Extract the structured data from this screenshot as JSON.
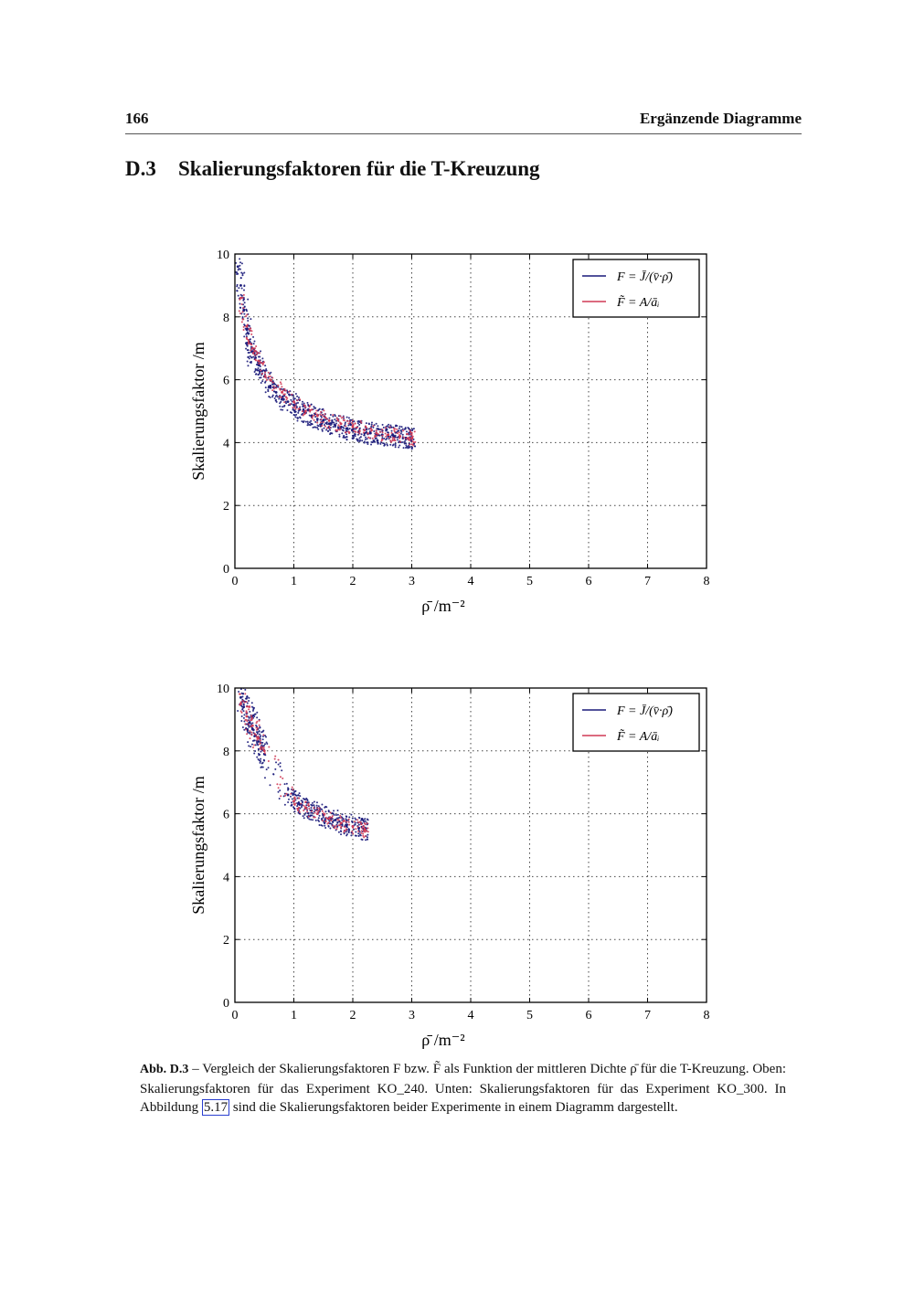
{
  "header": {
    "page_number": "166",
    "running_title": "Ergänzende Diagramme"
  },
  "section": {
    "number": "D.3",
    "title": "Skalierungsfaktoren für die T-Kreuzung"
  },
  "chart_data": [
    {
      "type": "scatter",
      "xlabel": "ρ̄  /m⁻²",
      "ylabel": "Skalierungsfaktor /m",
      "xlim": [
        0,
        8
      ],
      "ylim": [
        0,
        10
      ],
      "xticks": [
        0,
        1,
        2,
        3,
        4,
        5,
        6,
        7,
        8
      ],
      "yticks": [
        0,
        2,
        4,
        6,
        8,
        10
      ],
      "grid": true,
      "legend_position": "top-right",
      "series": [
        {
          "name": "F = J̄/(v̄·ρ̄)",
          "color": "#1a1a7a",
          "x": [
            0.05,
            0.1,
            0.15,
            0.2,
            0.25,
            0.3,
            0.35,
            0.4,
            0.5,
            0.6,
            0.7,
            0.8,
            0.9,
            1.0,
            1.1,
            1.2,
            1.3,
            1.4,
            1.5,
            1.6,
            1.7,
            1.8,
            1.9,
            2.0,
            2.1,
            2.2,
            2.3,
            2.4,
            2.5,
            2.6,
            2.7,
            2.8,
            2.9,
            3.0
          ],
          "y": [
            9.6,
            9.0,
            8.2,
            7.6,
            7.2,
            6.9,
            6.7,
            6.5,
            6.1,
            5.8,
            5.6,
            5.4,
            5.3,
            5.2,
            5.05,
            4.95,
            4.85,
            4.75,
            4.7,
            4.6,
            4.55,
            4.5,
            4.45,
            4.4,
            4.35,
            4.3,
            4.3,
            4.25,
            4.25,
            4.2,
            4.2,
            4.2,
            4.15,
            4.15
          ]
        },
        {
          "name": "F̃ = A/āᵢ",
          "color": "#d03a55",
          "x": [
            0.1,
            0.2,
            0.3,
            0.4,
            0.6,
            0.8,
            1.0,
            1.2,
            1.4,
            1.6,
            1.8,
            2.0,
            2.2,
            2.4,
            2.6,
            2.8,
            3.0
          ],
          "y": [
            8.6,
            7.7,
            7.0,
            6.6,
            6.0,
            5.6,
            5.3,
            5.0,
            4.85,
            4.7,
            4.6,
            4.5,
            4.4,
            4.3,
            4.25,
            4.2,
            4.15
          ]
        }
      ]
    },
    {
      "type": "scatter",
      "xlabel": "ρ̄  /m⁻²",
      "ylabel": "Skalierungsfaktor /m",
      "xlim": [
        0,
        8
      ],
      "ylim": [
        0,
        10
      ],
      "xticks": [
        0,
        1,
        2,
        3,
        4,
        5,
        6,
        7,
        8
      ],
      "yticks": [
        0,
        2,
        4,
        6,
        8,
        10
      ],
      "grid": true,
      "legend_position": "top-right",
      "series": [
        {
          "name": "F = J̄/(v̄·ρ̄)",
          "color": "#1a1a7a",
          "x": [
            0.1,
            0.15,
            0.2,
            0.25,
            0.3,
            0.35,
            0.4,
            0.45,
            0.5,
            0.9,
            1.0,
            1.1,
            1.2,
            1.3,
            1.4,
            1.5,
            1.6,
            1.7,
            1.8,
            1.9,
            2.0,
            2.1,
            2.2
          ],
          "y": [
            9.7,
            9.4,
            9.2,
            8.9,
            8.7,
            8.5,
            8.3,
            8.1,
            7.9,
            6.6,
            6.4,
            6.3,
            6.2,
            6.1,
            6.0,
            5.95,
            5.85,
            5.8,
            5.7,
            5.65,
            5.6,
            5.55,
            5.5
          ]
        },
        {
          "name": "F̃ = A/āᵢ",
          "color": "#d03a55",
          "x": [
            0.1,
            0.2,
            0.3,
            0.4,
            0.5,
            1.0,
            1.2,
            1.4,
            1.6,
            1.8,
            2.0,
            2.2
          ],
          "y": [
            9.5,
            9.1,
            8.8,
            8.4,
            8.0,
            6.4,
            6.2,
            6.0,
            5.85,
            5.7,
            5.6,
            5.5
          ]
        }
      ]
    }
  ],
  "caption": {
    "label": "Abb. D.3",
    "text_before_link": " – Vergleich der Skalierungsfaktoren F bzw. F̃ als Funktion der mittleren Dichte ρ̄ für die T-Kreuzung. Oben: Skalierungsfaktoren für das Experiment KO_240. Unten: Skalierungsfaktoren für das Experiment KO_300. In Abbildung ",
    "link": "5.17",
    "text_after_link": " sind die Skalierungsfaktoren beider Experimente in einem Diagramm dargestellt."
  }
}
